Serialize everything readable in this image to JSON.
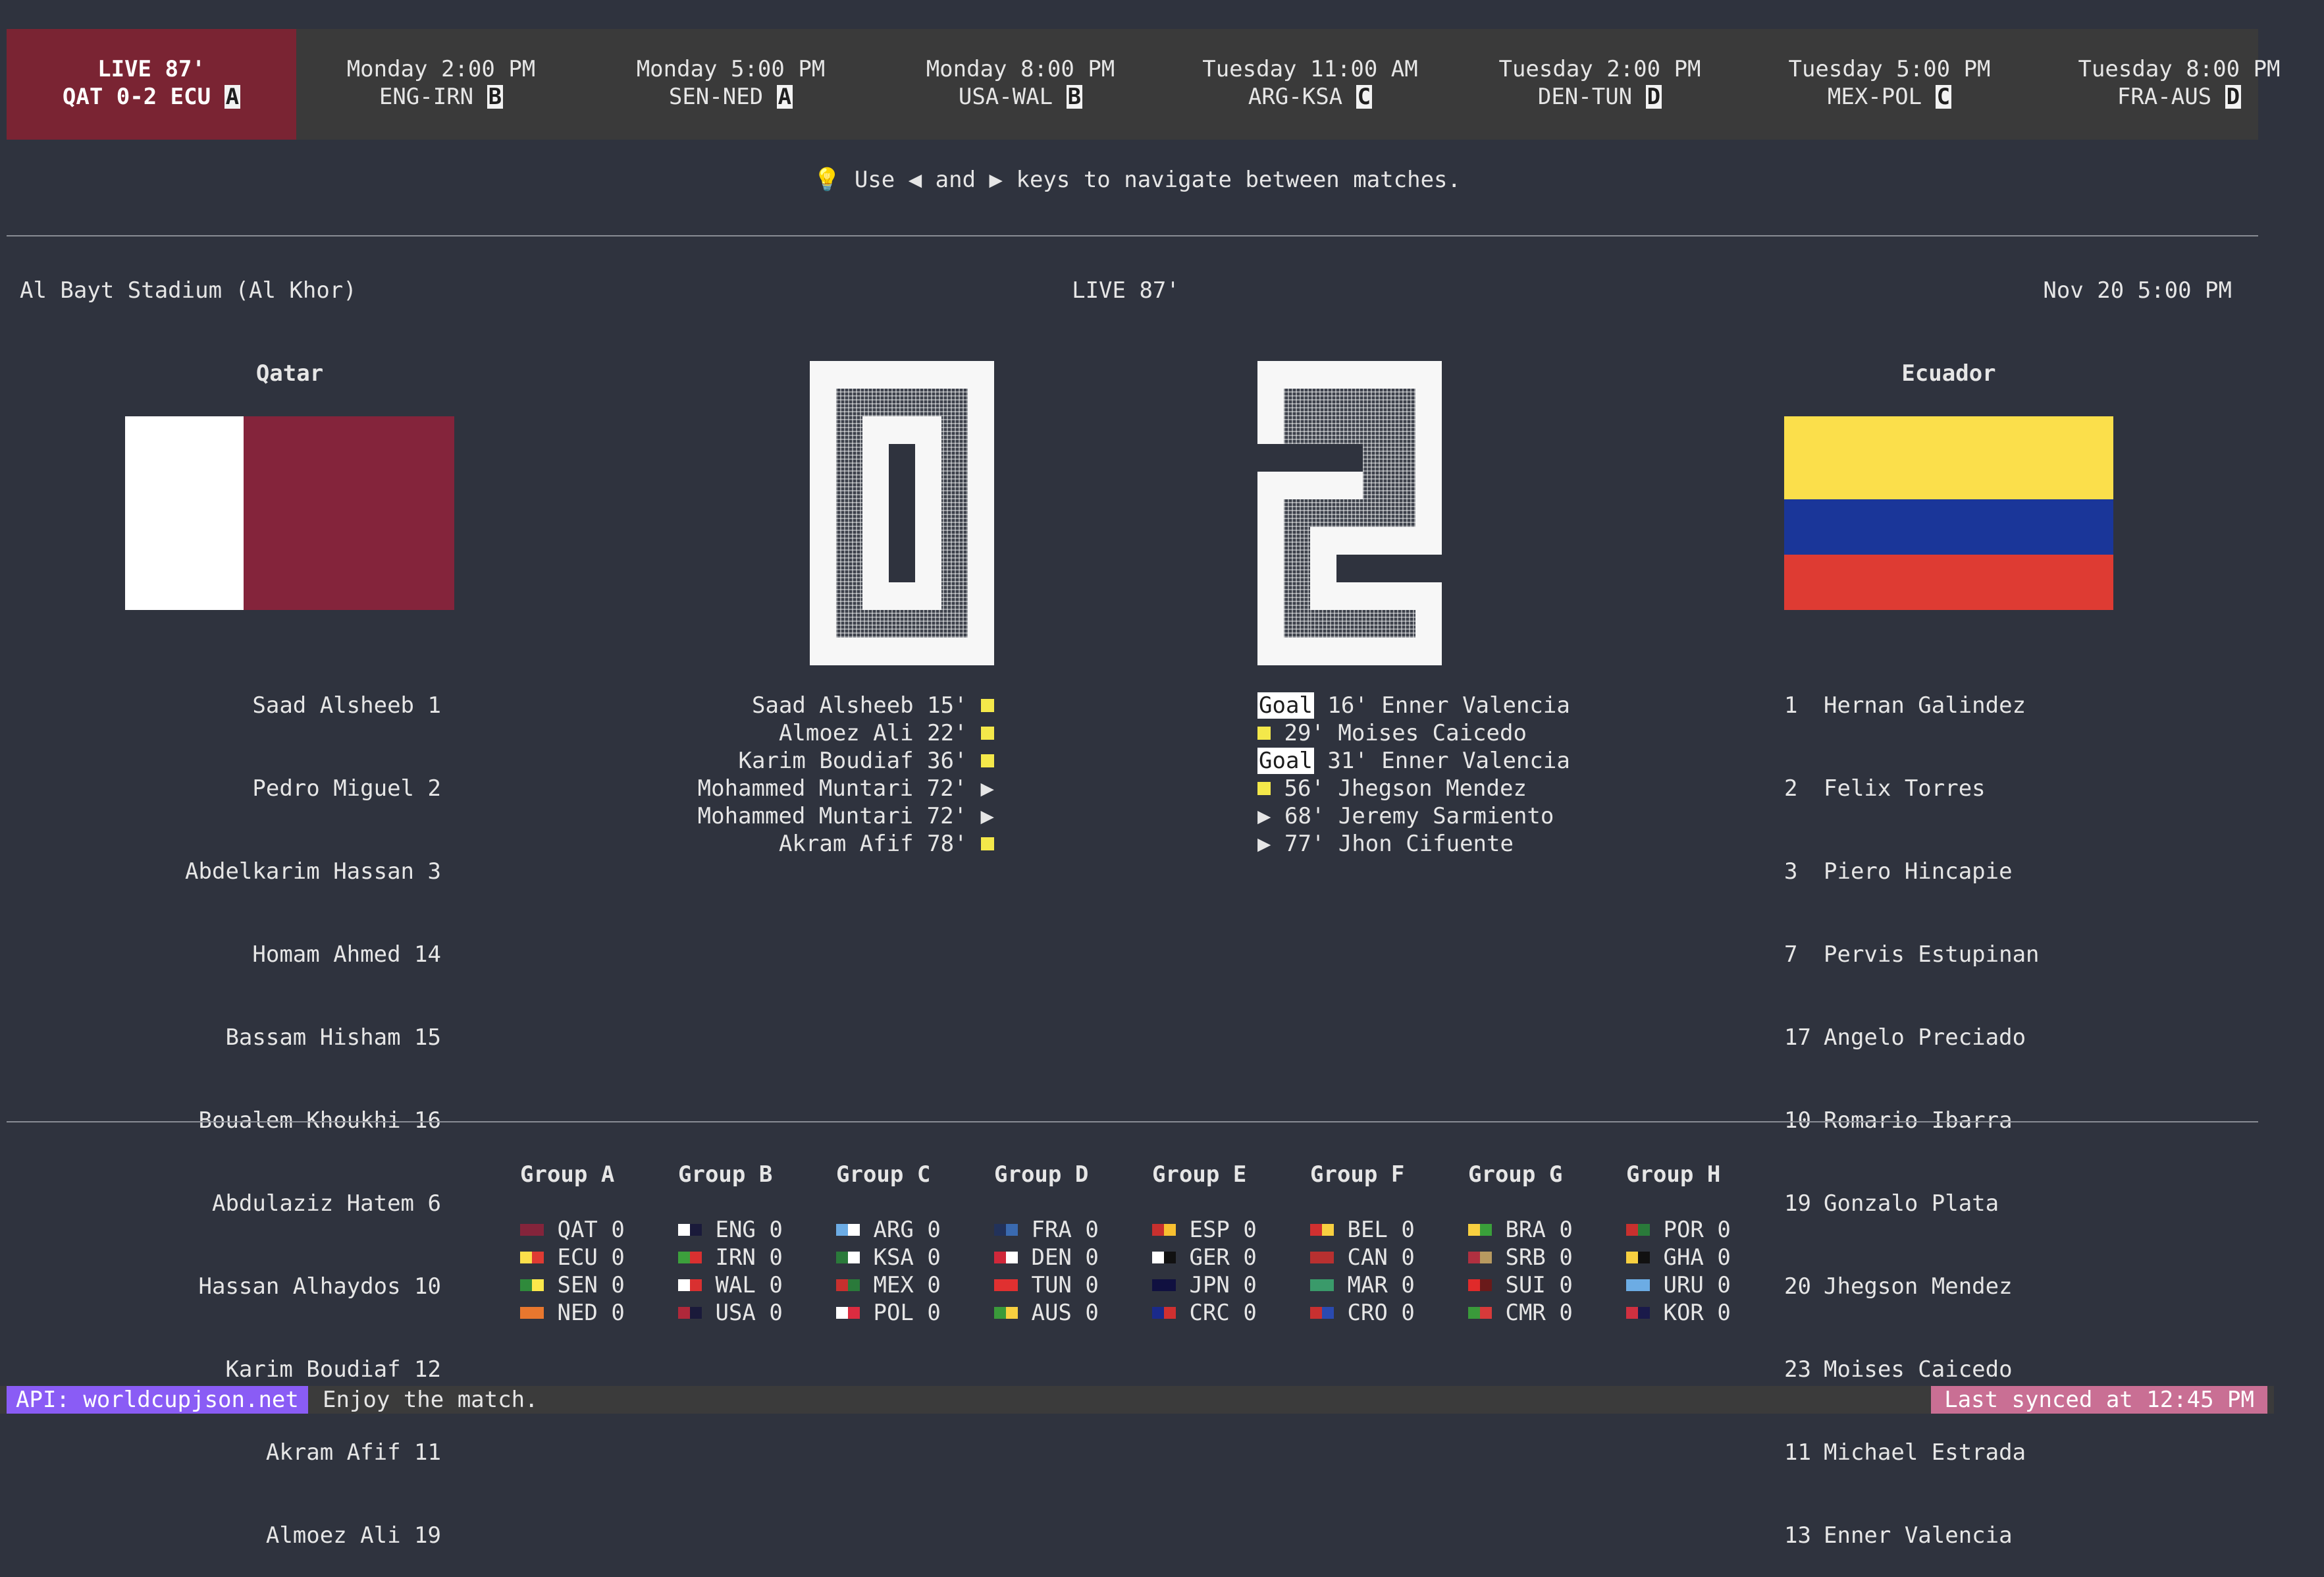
{
  "matches": [
    {
      "line1": "LIVE 87'",
      "line2": "QAT 0-2 ECU",
      "group": "A",
      "live": true
    },
    {
      "line1": "Monday 2:00 PM",
      "line2": "ENG-IRN",
      "group": "B"
    },
    {
      "line1": "Monday 5:00 PM",
      "line2": "SEN-NED",
      "group": "A"
    },
    {
      "line1": "Monday 8:00 PM",
      "line2": "USA-WAL",
      "group": "B"
    },
    {
      "line1": "Tuesday 11:00 AM",
      "line2": "ARG-KSA",
      "group": "C"
    },
    {
      "line1": "Tuesday 2:00 PM",
      "line2": "DEN-TUN",
      "group": "D"
    },
    {
      "line1": "Tuesday 5:00 PM",
      "line2": "MEX-POL",
      "group": "C"
    },
    {
      "line1": "Tuesday 8:00 PM",
      "line2": "FRA-AUS",
      "group": "D"
    }
  ],
  "hint": {
    "icon": "lightbulb-icon",
    "glyph": "💡",
    "text": "Use ◀ and ▶ keys to navigate between matches."
  },
  "info": {
    "venue": "Al Bayt Stadium (Al Khor)",
    "status": "LIVE 87'",
    "kickoff": "Nov 20 5:00 PM"
  },
  "home": {
    "name": "Qatar",
    "flag_colors": [
      "#ffffff",
      "#84243b"
    ],
    "score": "0",
    "lineup": [
      {
        "name": "Saad Alsheeb",
        "num": "1"
      },
      {
        "name": "Pedro Miguel",
        "num": "2"
      },
      {
        "name": "Abdelkarim Hassan",
        "num": "3"
      },
      {
        "name": "Homam Ahmed",
        "num": "14"
      },
      {
        "name": "Bassam Hisham",
        "num": "15"
      },
      {
        "name": "Boualem Khoukhi",
        "num": "16"
      },
      {
        "name": "Abdulaziz Hatem",
        "num": "6"
      },
      {
        "name": "Hassan Alhaydos",
        "num": "10"
      },
      {
        "name": "Karim Boudiaf",
        "num": "12"
      },
      {
        "name": "Akram Afif",
        "num": "11"
      },
      {
        "name": "Almoez Ali",
        "num": "19"
      }
    ],
    "events": [
      {
        "text": "Saad Alsheeb 15'",
        "type": "yellow-card"
      },
      {
        "text": "Almoez Ali 22'",
        "type": "yellow-card"
      },
      {
        "text": "Karim Boudiaf 36'",
        "type": "yellow-card"
      },
      {
        "text": "Mohammed Muntari 72'",
        "type": "substitution",
        "glyph": "▶"
      },
      {
        "text": "Mohammed Muntari 72'",
        "type": "substitution",
        "glyph": "▶"
      },
      {
        "text": "Akram Afif 78'",
        "type": "yellow-card"
      }
    ]
  },
  "away": {
    "name": "Ecuador",
    "flag_colors": [
      "#fbdf4b",
      "#1a3699",
      "#de3b33"
    ],
    "score": "2",
    "lineup": [
      {
        "num": "1",
        "name": "Hernan Galindez"
      },
      {
        "num": "2",
        "name": "Felix Torres"
      },
      {
        "num": "3",
        "name": "Piero Hincapie"
      },
      {
        "num": "7",
        "name": "Pervis Estupinan"
      },
      {
        "num": "17",
        "name": "Angelo Preciado"
      },
      {
        "num": "10",
        "name": "Romario Ibarra"
      },
      {
        "num": "19",
        "name": "Gonzalo Plata"
      },
      {
        "num": "20",
        "name": "Jhegson Mendez"
      },
      {
        "num": "23",
        "name": "Moises Caicedo"
      },
      {
        "num": "11",
        "name": "Michael Estrada"
      },
      {
        "num": "13",
        "name": "Enner Valencia"
      }
    ],
    "events": [
      {
        "text": "16' Enner Valencia",
        "type": "goal",
        "label": "Goal"
      },
      {
        "text": "29' Moises Caicedo",
        "type": "yellow-card"
      },
      {
        "text": "31' Enner Valencia",
        "type": "goal",
        "label": "Goal"
      },
      {
        "text": "56' Jhegson Mendez",
        "type": "yellow-card"
      },
      {
        "text": "68' Jeremy Sarmiento",
        "type": "substitution",
        "glyph": "▶"
      },
      {
        "text": "77' Jhon Cifuente",
        "type": "substitution",
        "glyph": "▶"
      }
    ]
  },
  "groups": [
    {
      "name": "Group A",
      "teams": [
        {
          "code": "QAT",
          "pts": "0",
          "colors": [
            "#84243b",
            "#84243b"
          ]
        },
        {
          "code": "ECU",
          "pts": "0",
          "colors": [
            "#fbdf4b",
            "#de3b33"
          ]
        },
        {
          "code": "SEN",
          "pts": "0",
          "colors": [
            "#2f8a3b",
            "#fbe84b"
          ]
        },
        {
          "code": "NED",
          "pts": "0",
          "colors": [
            "#e8772e",
            "#e8772e"
          ]
        }
      ]
    },
    {
      "name": "Group B",
      "teams": [
        {
          "code": "ENG",
          "pts": "0",
          "colors": [
            "#ffffff",
            "#1a1a3a"
          ]
        },
        {
          "code": "IRN",
          "pts": "0",
          "colors": [
            "#3ca03c",
            "#d93030"
          ]
        },
        {
          "code": "WAL",
          "pts": "0",
          "colors": [
            "#ffffff",
            "#d93030"
          ]
        },
        {
          "code": "USA",
          "pts": "0",
          "colors": [
            "#b0283a",
            "#1a1a3a"
          ]
        }
      ]
    },
    {
      "name": "Group C",
      "teams": [
        {
          "code": "ARG",
          "pts": "0",
          "colors": [
            "#6cace4",
            "#ffffff"
          ]
        },
        {
          "code": "KSA",
          "pts": "0",
          "colors": [
            "#2a7a3a",
            "#ffffff"
          ]
        },
        {
          "code": "MEX",
          "pts": "0",
          "colors": [
            "#c8302e",
            "#2a7a3a"
          ]
        },
        {
          "code": "POL",
          "pts": "0",
          "colors": [
            "#ffffff",
            "#dc2c40"
          ]
        }
      ]
    },
    {
      "name": "Group D",
      "teams": [
        {
          "code": "FRA",
          "pts": "0",
          "colors": [
            "#22325a",
            "#3a6ab0"
          ]
        },
        {
          "code": "DEN",
          "pts": "0",
          "colors": [
            "#d0283a",
            "#ffffff"
          ]
        },
        {
          "code": "TUN",
          "pts": "0",
          "colors": [
            "#e03030",
            "#e03030"
          ]
        },
        {
          "code": "AUS",
          "pts": "0",
          "colors": [
            "#3a9a3a",
            "#f8d040"
          ]
        }
      ]
    },
    {
      "name": "Group E",
      "teams": [
        {
          "code": "ESP",
          "pts": "0",
          "colors": [
            "#c8302e",
            "#f8c030"
          ]
        },
        {
          "code": "GER",
          "pts": "0",
          "colors": [
            "#ffffff",
            "#111111"
          ]
        },
        {
          "code": "JPN",
          "pts": "0",
          "colors": [
            "#101040",
            "#101040"
          ]
        },
        {
          "code": "CRC",
          "pts": "0",
          "colors": [
            "#1a2a8a",
            "#d03030"
          ]
        }
      ]
    },
    {
      "name": "Group F",
      "teams": [
        {
          "code": "BEL",
          "pts": "0",
          "colors": [
            "#d03030",
            "#f8d040"
          ]
        },
        {
          "code": "CAN",
          "pts": "0",
          "colors": [
            "#b83030",
            "#b83030"
          ]
        },
        {
          "code": "MAR",
          "pts": "0",
          "colors": [
            "#3a9a6a",
            "#3a9a6a"
          ]
        },
        {
          "code": "CRO",
          "pts": "0",
          "colors": [
            "#c83030",
            "#2a4ab0"
          ]
        }
      ]
    },
    {
      "name": "Group G",
      "teams": [
        {
          "code": "BRA",
          "pts": "0",
          "colors": [
            "#f8d040",
            "#3aa03a"
          ]
        },
        {
          "code": "SRB",
          "pts": "0",
          "colors": [
            "#b03040",
            "#b89a60"
          ]
        },
        {
          "code": "SUI",
          "pts": "0",
          "colors": [
            "#e02a2a",
            "#6a1a1a"
          ]
        },
        {
          "code": "CMR",
          "pts": "0",
          "colors": [
            "#3a9a3a",
            "#d83a3a"
          ]
        }
      ]
    },
    {
      "name": "Group H",
      "teams": [
        {
          "code": "POR",
          "pts": "0",
          "colors": [
            "#c8302e",
            "#2a7a3a"
          ]
        },
        {
          "code": "GHA",
          "pts": "0",
          "colors": [
            "#f8d040",
            "#111111"
          ]
        },
        {
          "code": "URU",
          "pts": "0",
          "colors": [
            "#6cace4",
            "#6cace4"
          ]
        },
        {
          "code": "KOR",
          "pts": "0",
          "colors": [
            "#d03040",
            "#1a1a4a"
          ]
        }
      ]
    }
  ],
  "footer": {
    "api": "API: worldcupjson.net",
    "message": "Enjoy the match.",
    "sync": "Last synced at 12:45 PM"
  }
}
